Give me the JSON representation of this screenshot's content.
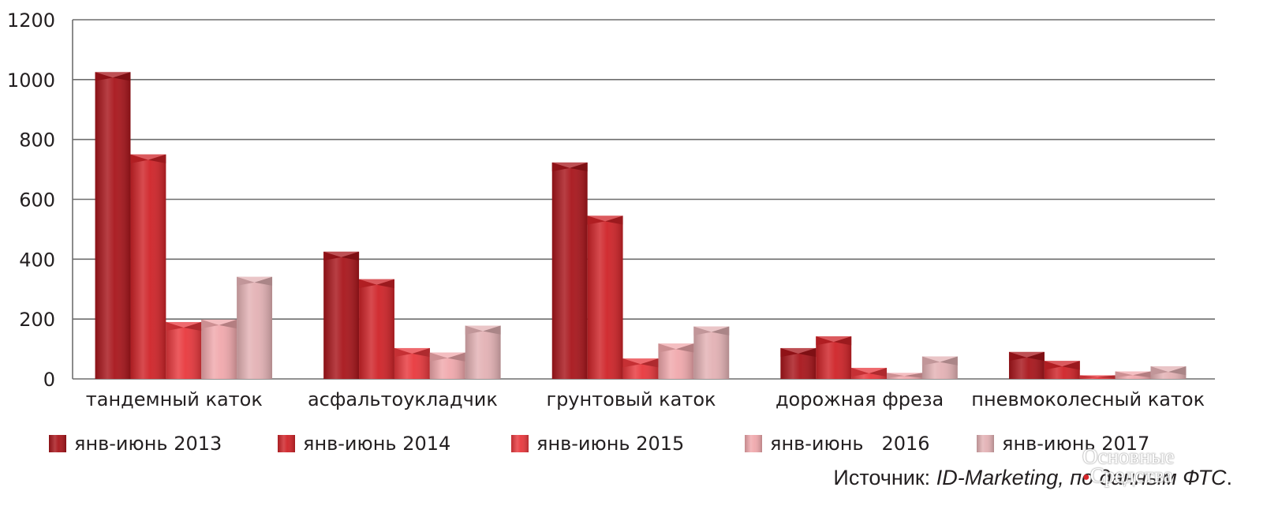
{
  "chart_data": {
    "type": "bar",
    "categories": [
      "тандемный каток",
      "асфальтоукладчик",
      "грунтовый каток",
      "дорожная фреза",
      "пневмоколесный каток"
    ],
    "series": [
      {
        "name": "янв-июнь 2013",
        "values": [
          1025,
          425,
          723,
          103,
          90
        ],
        "color": "#a8151b"
      },
      {
        "name": "янв-июнь 2014",
        "values": [
          750,
          333,
          545,
          142,
          60
        ],
        "color": "#cf2328"
      },
      {
        "name": "янв-июнь 2015",
        "values": [
          190,
          103,
          68,
          37,
          12
        ],
        "color": "#e8383d"
      },
      {
        "name": "янв-июнь   2016",
        "values": [
          198,
          88,
          118,
          20,
          25
        ],
        "color": "#f0a8ac"
      },
      {
        "name": "янв-июнь 2017",
        "values": [
          341,
          178,
          175,
          75,
          42
        ],
        "color": "#e3b1b4"
      }
    ],
    "yticks": [
      "0",
      "200",
      "400",
      "600",
      "800",
      "1000",
      "1200"
    ],
    "ylim": [
      0,
      1200
    ],
    "grid": true,
    "legend": "bottom",
    "title": "",
    "xlabel": "",
    "ylabel": ""
  },
  "source": {
    "prefix": "Источник: ",
    "italic": "ID-Marketing, по данным ФТС",
    "suffix": "."
  },
  "watermark": {
    "line1": "Основные",
    "line2": "Средства"
  }
}
